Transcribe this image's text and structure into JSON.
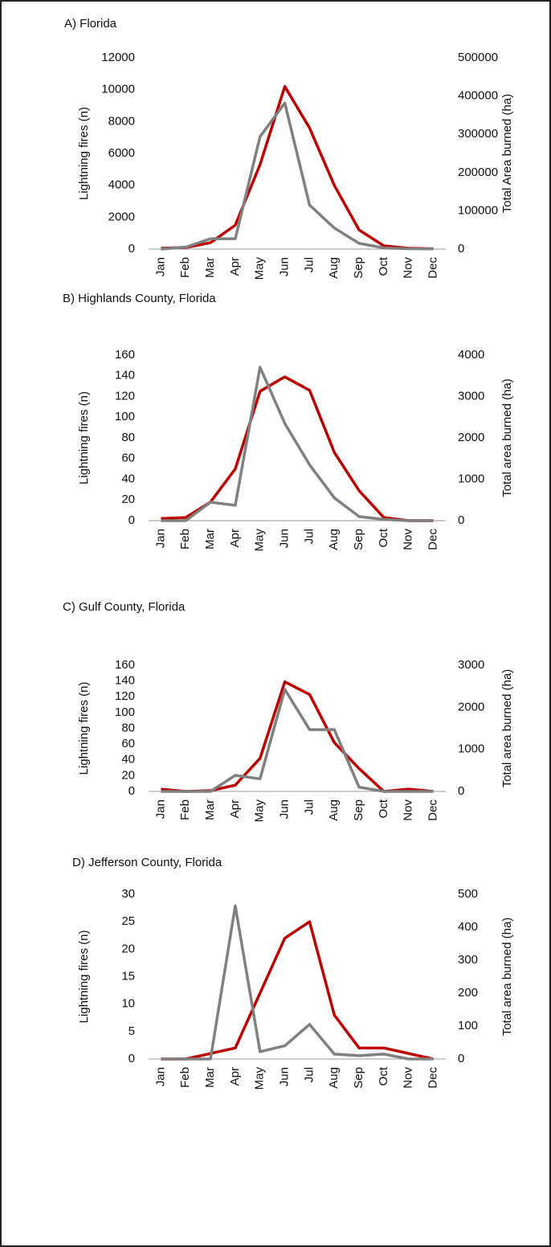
{
  "chart_data": [
    {
      "type": "line",
      "title": "A) Florida",
      "ylabel": "Lightning fires (n)",
      "y2label": "Total Area burned (ha)",
      "categories": [
        "Jan",
        "Feb",
        "Mar",
        "Apr",
        "May",
        "Jun",
        "Jul",
        "Aug",
        "Sep",
        "Oct",
        "Nov",
        "Dec"
      ],
      "ylim": [
        0,
        12000
      ],
      "yticks": [
        0,
        2000,
        4000,
        6000,
        8000,
        10000,
        12000
      ],
      "y2lim": [
        0,
        500000
      ],
      "y2ticks": [
        0,
        100000,
        200000,
        300000,
        400000,
        500000
      ],
      "series": [
        {
          "color": "#c00000",
          "values": [
            50,
            100,
            400,
            1500,
            5300,
            10200,
            7600,
            4000,
            1200,
            200,
            50,
            20
          ]
        },
        {
          "color": "#808080",
          "axis": "y2",
          "values": [
            0,
            5000,
            27000,
            27000,
            294000,
            382000,
            115000,
            55000,
            15000,
            3000,
            1000,
            500
          ]
        }
      ]
    },
    {
      "type": "line",
      "title": "B) Highlands County, Florida",
      "ylabel": "Lightning fires (n)",
      "y2label": "Total area burned (ha)",
      "categories": [
        "Jan",
        "Feb",
        "Mar",
        "Apr",
        "May",
        "Jun",
        "Jul",
        "Aug",
        "Sep",
        "Oct",
        "Nov",
        "Dec"
      ],
      "ylim": [
        0,
        160
      ],
      "yticks": [
        0,
        20,
        40,
        60,
        80,
        100,
        120,
        140,
        160
      ],
      "y2lim": [
        0,
        4000
      ],
      "y2ticks": [
        0,
        1000,
        2000,
        3000,
        4000
      ],
      "series": [
        {
          "color": "#c00000",
          "values": [
            2,
            3,
            18,
            50,
            125,
            139,
            126,
            66,
            29,
            3,
            0,
            0
          ]
        },
        {
          "color": "#808080",
          "axis": "y2",
          "values": [
            0,
            0,
            446,
            370,
            3708,
            2350,
            1350,
            550,
            100,
            30,
            0,
            0
          ]
        }
      ]
    },
    {
      "type": "line",
      "title": "C) Gulf County, Florida",
      "ylabel": "Lightning fires (n)",
      "y2label": "Total area burned (ha)",
      "categories": [
        "Jan",
        "Feb",
        "Mar",
        "Apr",
        "May",
        "Jun",
        "Jul",
        "Aug",
        "Sep",
        "Oct",
        "Nov",
        "Dec"
      ],
      "ylim": [
        0,
        160
      ],
      "yticks": [
        0,
        20,
        40,
        60,
        80,
        100,
        120,
        140,
        160
      ],
      "y2lim": [
        0,
        3000
      ],
      "y2ticks": [
        0,
        1000,
        2000,
        3000
      ],
      "series": [
        {
          "color": "#c00000",
          "values": [
            3,
            0,
            1,
            8,
            42,
            139,
            123,
            62,
            29,
            0,
            3,
            0
          ]
        },
        {
          "color": "#808080",
          "axis": "y2",
          "values": [
            0,
            0,
            0,
            382,
            300,
            2427,
            1470,
            1470,
            100,
            0,
            0,
            0
          ]
        }
      ]
    },
    {
      "type": "line",
      "title": "D) Jefferson County, Florida",
      "ylabel": "Lightning fires (n)",
      "y2label": "Total area burned (ha)",
      "categories": [
        "Jan",
        "Feb",
        "Mar",
        "Apr",
        "May",
        "Jun",
        "Jul",
        "Aug",
        "Sep",
        "Oct",
        "Nov",
        "Dec"
      ],
      "ylim": [
        0,
        30
      ],
      "yticks": [
        0,
        5,
        10,
        15,
        20,
        25,
        30
      ],
      "y2lim": [
        0,
        500
      ],
      "y2ticks": [
        0,
        100,
        200,
        300,
        400,
        500
      ],
      "series": [
        {
          "color": "#c00000",
          "values": [
            0,
            0,
            1,
            2,
            12,
            22,
            25,
            8,
            2,
            2,
            1,
            0
          ]
        },
        {
          "color": "#808080",
          "axis": "y2",
          "values": [
            0,
            0,
            0,
            465,
            22,
            40,
            105,
            15,
            10,
            15,
            0,
            0
          ]
        }
      ]
    }
  ]
}
